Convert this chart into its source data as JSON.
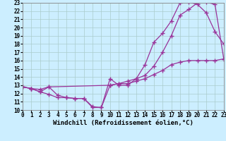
{
  "line1_x": [
    0,
    1,
    2,
    3,
    4,
    5,
    6,
    7,
    8,
    9,
    10,
    11,
    12,
    13,
    14,
    15,
    16,
    17,
    18,
    19,
    20,
    21,
    22,
    23
  ],
  "line1_y": [
    12.8,
    12.6,
    12.2,
    11.9,
    11.5,
    11.5,
    11.4,
    11.4,
    10.4,
    10.3,
    13.8,
    13.0,
    13.0,
    13.8,
    15.5,
    18.2,
    19.3,
    20.8,
    23.0,
    23.1,
    22.8,
    21.8,
    19.5,
    18.0
  ],
  "line2_x": [
    0,
    1,
    2,
    3,
    10,
    11,
    12,
    13,
    14,
    15,
    16,
    17,
    18,
    19,
    20,
    21,
    22,
    23
  ],
  "line2_y": [
    12.8,
    12.6,
    12.2,
    12.8,
    13.0,
    13.2,
    13.5,
    13.8,
    14.2,
    15.3,
    17.0,
    19.0,
    21.5,
    22.2,
    23.0,
    23.1,
    22.8,
    16.2
  ],
  "line3_x": [
    0,
    1,
    2,
    3,
    4,
    5,
    6,
    7,
    8,
    9,
    10,
    11,
    12,
    13,
    14,
    15,
    16,
    17,
    18,
    19,
    20,
    21,
    22,
    23
  ],
  "line3_y": [
    12.8,
    12.6,
    12.5,
    12.8,
    11.8,
    11.5,
    11.4,
    11.4,
    10.3,
    10.3,
    13.0,
    13.2,
    13.2,
    13.5,
    13.8,
    14.3,
    14.8,
    15.5,
    15.8,
    16.0,
    16.0,
    16.0,
    16.0,
    16.2
  ],
  "line_color": "#993399",
  "bg_color": "#cceeff",
  "grid_color": "#aacccc",
  "xlim": [
    0,
    23
  ],
  "ylim": [
    10,
    23
  ],
  "xlabel": "Windchill (Refroidissement éolien,°C)",
  "xticks": [
    0,
    1,
    2,
    3,
    4,
    5,
    6,
    7,
    8,
    9,
    10,
    11,
    12,
    13,
    14,
    15,
    16,
    17,
    18,
    19,
    20,
    21,
    22,
    23
  ],
  "yticks": [
    10,
    11,
    12,
    13,
    14,
    15,
    16,
    17,
    18,
    19,
    20,
    21,
    22,
    23
  ],
  "marker": "+",
  "markersize": 4,
  "linewidth": 0.9,
  "xlabel_fontsize": 6.5,
  "tick_fontsize": 5.5
}
